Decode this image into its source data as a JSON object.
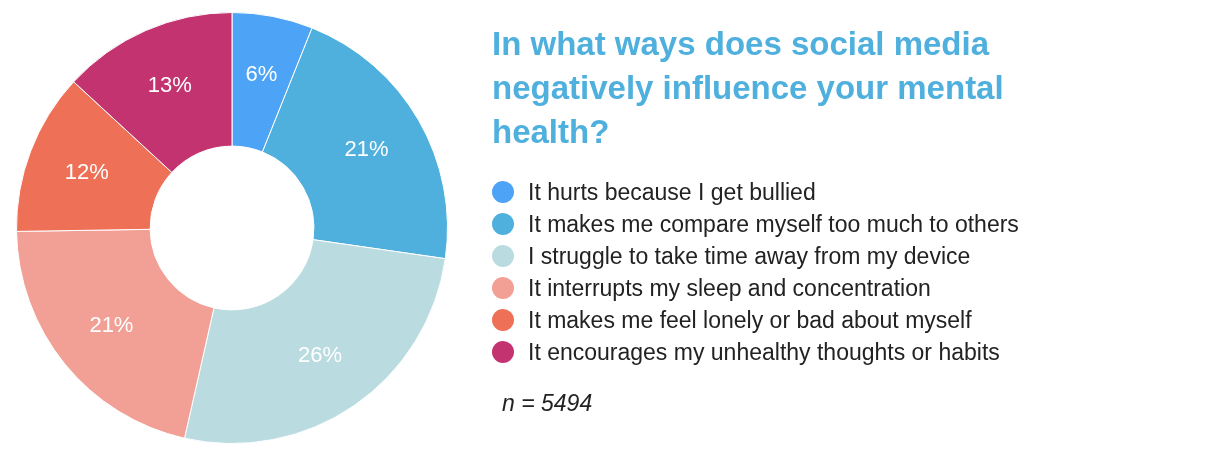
{
  "chart_data": {
    "type": "donut",
    "title": "In what ways does social media negatively influence your mental health?",
    "categories": [
      "It hurts because I get bullied",
      "It makes me compare myself too much to others",
      "I struggle to take time away from my device",
      "It interrupts my sleep and concentration",
      "It makes me feel lonely or bad about myself",
      "It encourages my unhealthy thoughts or habits"
    ],
    "values": [
      6,
      21,
      26,
      21,
      12,
      13
    ],
    "colors": [
      "#4da3f5",
      "#4fb0de",
      "#badbe0",
      "#f2a096",
      "#ee7057",
      "#c3336f"
    ],
    "value_labels": [
      "6%",
      "21%",
      "26%",
      "21%",
      "12%",
      "13%"
    ],
    "legend": "right",
    "annotations": [
      "n = 5494"
    ]
  }
}
